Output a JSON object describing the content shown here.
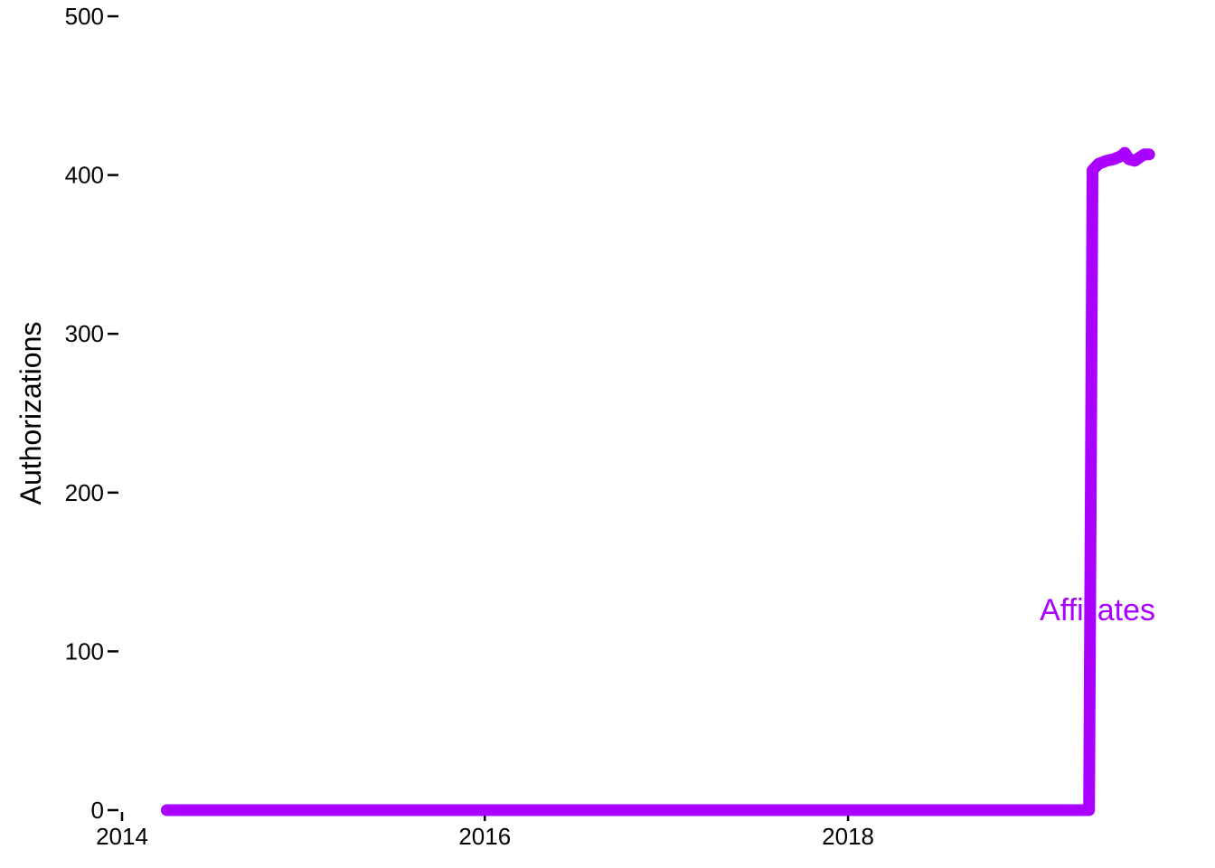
{
  "chart_data": {
    "type": "line",
    "title": "",
    "xlabel": "",
    "ylabel": "Authorizations",
    "xlim": [
      "2014-01-01",
      "2019-09-15"
    ],
    "ylim": [
      0,
      500
    ],
    "x_ticks": [
      "2014",
      "2016",
      "2018"
    ],
    "y_ticks": [
      0,
      100,
      200,
      300,
      400,
      500
    ],
    "grid": false,
    "legend": "none",
    "series": [
      {
        "name": "Affiliates",
        "color": "#aa00ff",
        "points": [
          {
            "x": "2014-04-01",
            "y": 0
          },
          {
            "x": "2015-01-01",
            "y": 0
          },
          {
            "x": "2016-01-01",
            "y": 0
          },
          {
            "x": "2017-01-01",
            "y": 0
          },
          {
            "x": "2018-01-01",
            "y": 0
          },
          {
            "x": "2019-01-01",
            "y": 0
          },
          {
            "x": "2019-05-01",
            "y": 0
          },
          {
            "x": "2019-05-08",
            "y": 403
          },
          {
            "x": "2019-05-20",
            "y": 407
          },
          {
            "x": "2019-06-05",
            "y": 409
          },
          {
            "x": "2019-06-20",
            "y": 410
          },
          {
            "x": "2019-07-05",
            "y": 412
          },
          {
            "x": "2019-07-12",
            "y": 414
          },
          {
            "x": "2019-07-20",
            "y": 410
          },
          {
            "x": "2019-08-01",
            "y": 409
          },
          {
            "x": "2019-08-10",
            "y": 411
          },
          {
            "x": "2019-08-20",
            "y": 413
          },
          {
            "x": "2019-08-30",
            "y": 413
          }
        ]
      }
    ]
  }
}
